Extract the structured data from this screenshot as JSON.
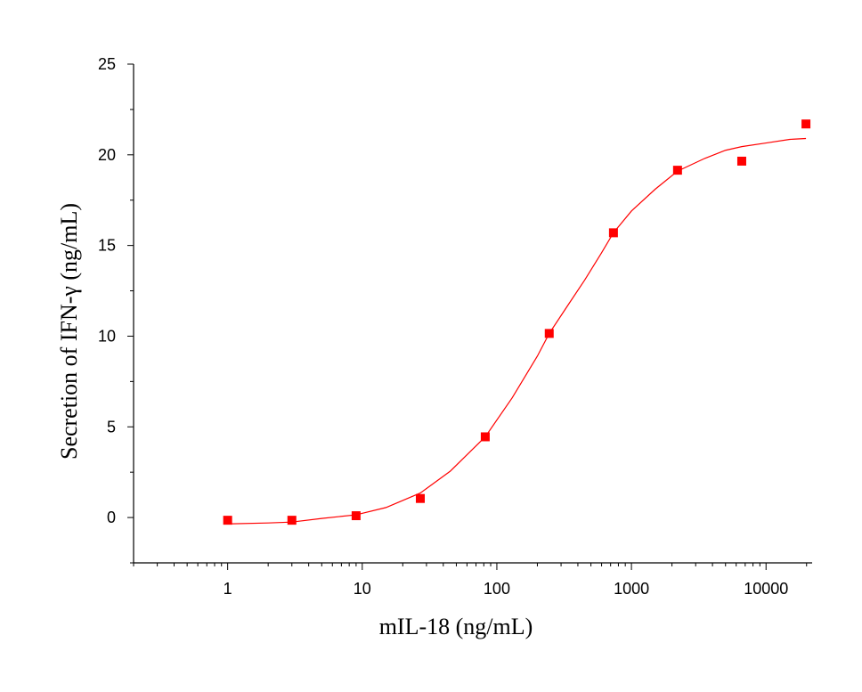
{
  "chart_data": {
    "type": "scatter",
    "title": "",
    "xlabel": "mIL-18 (ng/mL)",
    "ylabel": "Secretion of IFN-γ  (ng/mL)",
    "x_scale": "log",
    "xlim": [
      0.2,
      22000
    ],
    "ylim": [
      -2.5,
      25
    ],
    "x_ticks": [
      {
        "value": 1,
        "label": "1"
      },
      {
        "value": 10,
        "label": "10"
      },
      {
        "value": 100,
        "label": "100"
      },
      {
        "value": 1000,
        "label": "1000"
      },
      {
        "value": 10000,
        "label": "10000"
      }
    ],
    "y_ticks": [
      {
        "value": 0,
        "label": "0"
      },
      {
        "value": 5,
        "label": "5"
      },
      {
        "value": 10,
        "label": "10"
      },
      {
        "value": 15,
        "label": "15"
      },
      {
        "value": 20,
        "label": "20"
      },
      {
        "value": 25,
        "label": "25"
      }
    ],
    "grid": false,
    "legend": "none",
    "series": [
      {
        "marker": "square",
        "color": "#ff0000",
        "x": [
          1,
          3,
          9,
          27,
          82,
          245,
          735,
          2200,
          6600,
          19800
        ],
        "y": [
          -0.15,
          -0.15,
          0.1,
          1.05,
          4.45,
          10.15,
          15.7,
          19.15,
          19.65,
          21.7
        ]
      }
    ],
    "fit_curve": {
      "type": "sigmoid-fit",
      "color": "#ff0000",
      "x": [
        1,
        2,
        3,
        5,
        9,
        15,
        27,
        45,
        82,
        130,
        200,
        245,
        330,
        450,
        600,
        735,
        1000,
        1500,
        2200,
        3500,
        5000,
        6600,
        10000,
        15000,
        19800
      ],
      "y": [
        -0.35,
        -0.3,
        -0.25,
        -0.05,
        0.15,
        0.55,
        1.35,
        2.55,
        4.45,
        6.6,
        8.9,
        10.15,
        11.6,
        13.1,
        14.6,
        15.7,
        16.9,
        18.1,
        19.1,
        19.8,
        20.25,
        20.45,
        20.65,
        20.85,
        20.9
      ]
    }
  }
}
